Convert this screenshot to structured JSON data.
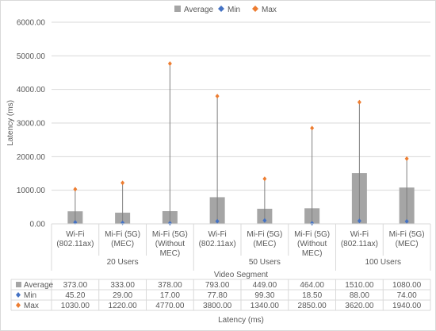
{
  "chart_data": {
    "type": "bar",
    "title": "",
    "ylabel": "Latency (ms)",
    "xlabel": "Latency (ms)",
    "segment_label": "Video Segment",
    "ylim": [
      0,
      6000
    ],
    "yticks": [
      "0.00",
      "1000.00",
      "2000.00",
      "3000.00",
      "4000.00",
      "5000.00",
      "6000.00"
    ],
    "grid": true,
    "legend_position": "top",
    "legend": [
      {
        "name": "Average",
        "marker": "square",
        "color": "#a5a5a5"
      },
      {
        "name": "Min",
        "marker": "diamond",
        "color": "#4472c4"
      },
      {
        "name": "Max",
        "marker": "diamond",
        "color": "#ed7d31"
      }
    ],
    "groups": [
      {
        "label": "20 Users",
        "size": 3
      },
      {
        "label": "50 Users",
        "size": 3
      },
      {
        "label": "100 Users",
        "size": 2
      }
    ],
    "categories": [
      [
        "Wi-Fi",
        "(802.11ax)"
      ],
      [
        "Mi-Fi (5G)",
        "(MEC)"
      ],
      [
        "Mi-Fi (5G)",
        "(Without",
        "MEC)"
      ],
      [
        "Wi-Fi",
        "(802.11ax)"
      ],
      [
        "Mi-Fi (5G)",
        "(MEC)"
      ],
      [
        "Mi-Fi (5G)",
        "(Without",
        "MEC)"
      ],
      [
        "Wi-Fi",
        "(802.11ax)"
      ],
      [
        "Mi-Fi (5G)",
        "(MEC)"
      ]
    ],
    "series": [
      {
        "name": "Average",
        "values": [
          373,
          333,
          378,
          793,
          449,
          464,
          1510,
          1080
        ],
        "labels": [
          "373.00",
          "333.00",
          "378.00",
          "793.00",
          "449.00",
          "464.00",
          "1510.00",
          "1080.00"
        ]
      },
      {
        "name": "Min",
        "values": [
          45.2,
          29,
          17,
          77.8,
          99.3,
          18.5,
          88,
          74
        ],
        "labels": [
          "45.20",
          "29.00",
          "17.00",
          "77.80",
          "99.30",
          "18.50",
          "88.00",
          "74.00"
        ]
      },
      {
        "name": "Max",
        "values": [
          1030,
          1220,
          4770,
          3800,
          1340,
          2850,
          3620,
          1940
        ],
        "labels": [
          "1030.00",
          "1220.00",
          "4770.00",
          "3800.00",
          "1340.00",
          "2850.00",
          "3620.00",
          "1940.00"
        ]
      }
    ]
  }
}
